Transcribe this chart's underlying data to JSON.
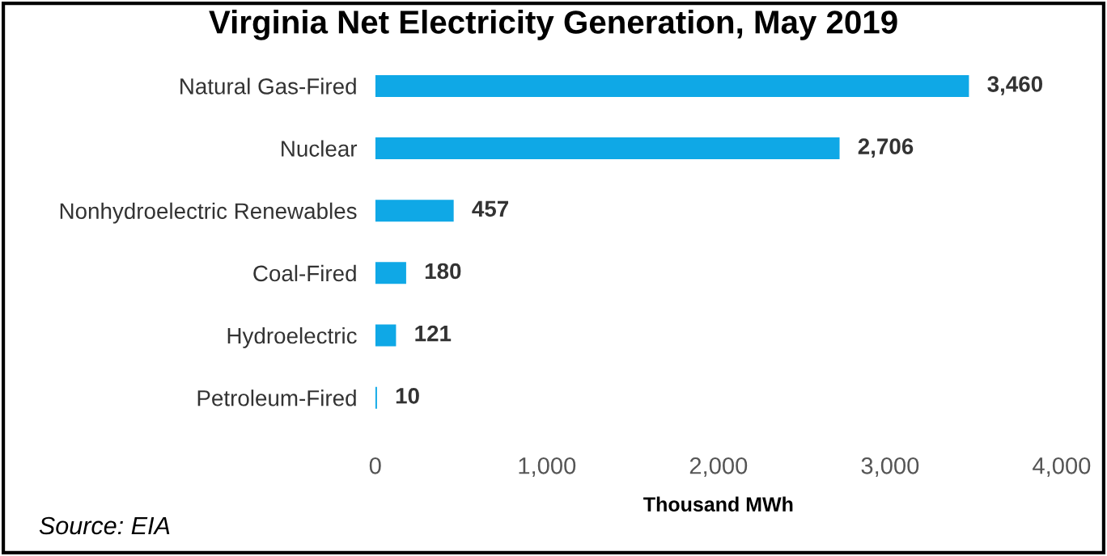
{
  "chart_data": {
    "type": "bar",
    "orientation": "horizontal",
    "title": "Virginia Net Electricity Generation, May 2019",
    "xlabel": "Thousand MWh",
    "categories": [
      "Natural Gas-Fired",
      "Nuclear",
      "Nonhydroelectric Renewables",
      "Coal-Fired",
      "Hydroelectric",
      "Petroleum-Fired"
    ],
    "values": [
      3460,
      2706,
      457,
      180,
      121,
      10
    ],
    "color": "#0fa8e6",
    "xlim": [
      0,
      4000
    ],
    "xticks": [
      {
        "value": 0,
        "label": "0"
      },
      {
        "value": 1000,
        "label": "1,000"
      },
      {
        "value": 2000,
        "label": "2,000"
      },
      {
        "value": 3000,
        "label": "3,000"
      },
      {
        "value": 4000,
        "label": "4,000"
      }
    ],
    "grid": false,
    "value_labels": [
      "3,460",
      "2,706",
      "457",
      "180",
      "121",
      "10"
    ],
    "annotations": [
      "Source: EIA"
    ]
  }
}
